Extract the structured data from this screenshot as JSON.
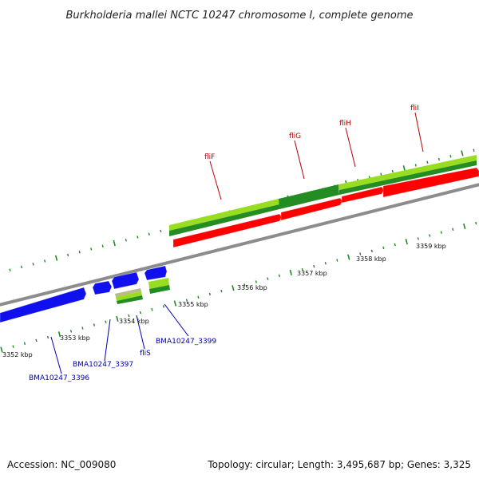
{
  "title": "Burkholderia mallei NCTC 10247 chromosome I, complete genome",
  "footer": {
    "accession": "Accession: NC_009080",
    "summary": "Topology: circular; Length: 3,495,687 bp; Genes: 3,325"
  },
  "colors": {
    "backbone": "#8c8c8c",
    "forward_cds": "#ff0000",
    "reverse_cds": "#1010ee",
    "gene_light": "#99dd22",
    "gene_dark": "#238c23",
    "tick": "#1e8a1e",
    "gene_label": "#bb0000",
    "locus_label": "#0000aa"
  },
  "tick_labels": [
    "3352 kbp",
    "3353 kbp",
    "3354 kbp",
    "3355 kbp",
    "3356 kbp",
    "3357 kbp",
    "3358 kbp",
    "3359 kbp"
  ],
  "forward_genes": [
    "fliF",
    "fliG",
    "fliH",
    "fliI"
  ],
  "reverse_genes": [
    "BMA10247_3396",
    "BMA10247_3397",
    "fliS",
    "BMA10247_3399"
  ]
}
